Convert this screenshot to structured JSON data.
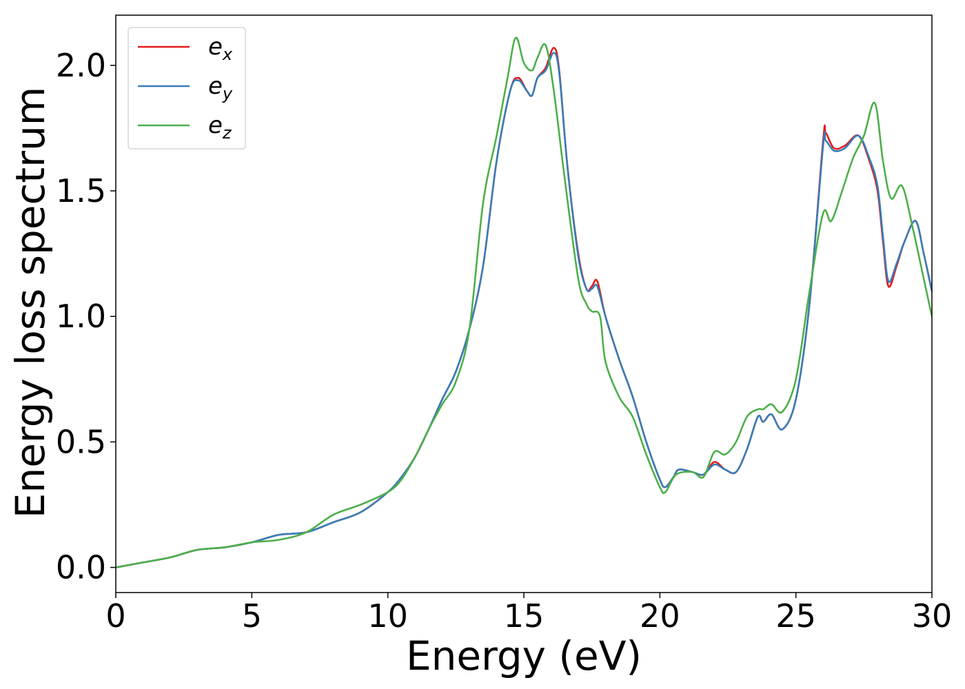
{
  "chart_data": {
    "type": "line",
    "title": "",
    "xlabel": "Energy (eV)",
    "ylabel": "Energy loss spectrum",
    "xlim": [
      0,
      30
    ],
    "ylim": [
      -0.1,
      2.2
    ],
    "xticks": [
      0,
      5,
      10,
      15,
      20,
      25,
      30
    ],
    "xtick_labels": [
      "0",
      "5",
      "10",
      "15",
      "20",
      "25",
      "30"
    ],
    "yticks": [
      0.0,
      0.5,
      1.0,
      1.5,
      2.0
    ],
    "ytick_labels": [
      "0.0",
      "0.5",
      "1.0",
      "1.5",
      "2.0"
    ],
    "grid": false,
    "legend_position": "top-left",
    "series": [
      {
        "name": "e_x",
        "name_base": "e",
        "name_sub": "x",
        "color": "#e41a1c",
        "points": [
          [
            0,
            0
          ],
          [
            1,
            0.02
          ],
          [
            2,
            0.04
          ],
          [
            3,
            0.07
          ],
          [
            4,
            0.08
          ],
          [
            5,
            0.1
          ],
          [
            6,
            0.13
          ],
          [
            7,
            0.14
          ],
          [
            8,
            0.18
          ],
          [
            9,
            0.22
          ],
          [
            10,
            0.3
          ],
          [
            10.5,
            0.36
          ],
          [
            11,
            0.44
          ],
          [
            11.5,
            0.55
          ],
          [
            12,
            0.67
          ],
          [
            12.5,
            0.78
          ],
          [
            13,
            0.95
          ],
          [
            13.5,
            1.2
          ],
          [
            14,
            1.62
          ],
          [
            14.5,
            1.9
          ],
          [
            14.8,
            1.95
          ],
          [
            15.1,
            1.9
          ],
          [
            15.3,
            1.88
          ],
          [
            15.5,
            1.95
          ],
          [
            15.8,
            1.99
          ],
          [
            16.1,
            2.07
          ],
          [
            16.3,
            1.98
          ],
          [
            16.6,
            1.6
          ],
          [
            17.0,
            1.25
          ],
          [
            17.3,
            1.11
          ],
          [
            17.5,
            1.12
          ],
          [
            17.7,
            1.14
          ],
          [
            18,
            1.0
          ],
          [
            18.5,
            0.83
          ],
          [
            19,
            0.68
          ],
          [
            19.5,
            0.5
          ],
          [
            20,
            0.35
          ],
          [
            20.2,
            0.32
          ],
          [
            20.5,
            0.36
          ],
          [
            20.7,
            0.39
          ],
          [
            21.2,
            0.38
          ],
          [
            21.6,
            0.37
          ],
          [
            22,
            0.42
          ],
          [
            22.4,
            0.39
          ],
          [
            22.8,
            0.38
          ],
          [
            23.2,
            0.47
          ],
          [
            23.6,
            0.6
          ],
          [
            23.8,
            0.58
          ],
          [
            24.1,
            0.61
          ],
          [
            24.5,
            0.55
          ],
          [
            25,
            0.67
          ],
          [
            25.5,
            1.05
          ],
          [
            26,
            1.7
          ],
          [
            26.1,
            1.73
          ],
          [
            26.4,
            1.67
          ],
          [
            26.8,
            1.68
          ],
          [
            27.3,
            1.72
          ],
          [
            27.7,
            1.62
          ],
          [
            28,
            1.5
          ],
          [
            28.2,
            1.3
          ],
          [
            28.4,
            1.12
          ],
          [
            28.7,
            1.2
          ],
          [
            29,
            1.3
          ],
          [
            29.4,
            1.38
          ],
          [
            29.7,
            1.25
          ],
          [
            30,
            1.1
          ]
        ]
      },
      {
        "name": "e_y",
        "name_base": "e",
        "name_sub": "y",
        "color": "#377eb8",
        "points": [
          [
            0,
            0
          ],
          [
            1,
            0.02
          ],
          [
            2,
            0.04
          ],
          [
            3,
            0.07
          ],
          [
            4,
            0.08
          ],
          [
            5,
            0.1
          ],
          [
            6,
            0.13
          ],
          [
            7,
            0.14
          ],
          [
            8,
            0.18
          ],
          [
            9,
            0.22
          ],
          [
            10,
            0.3
          ],
          [
            10.5,
            0.36
          ],
          [
            11,
            0.44
          ],
          [
            11.5,
            0.55
          ],
          [
            12,
            0.67
          ],
          [
            12.5,
            0.78
          ],
          [
            13,
            0.95
          ],
          [
            13.5,
            1.2
          ],
          [
            14,
            1.62
          ],
          [
            14.5,
            1.9
          ],
          [
            14.8,
            1.94
          ],
          [
            15.1,
            1.9
          ],
          [
            15.3,
            1.88
          ],
          [
            15.5,
            1.95
          ],
          [
            15.8,
            1.98
          ],
          [
            16.1,
            2.05
          ],
          [
            16.3,
            1.97
          ],
          [
            16.6,
            1.6
          ],
          [
            17.0,
            1.24
          ],
          [
            17.3,
            1.11
          ],
          [
            17.5,
            1.11
          ],
          [
            17.7,
            1.12
          ],
          [
            18,
            1.0
          ],
          [
            18.5,
            0.83
          ],
          [
            19,
            0.68
          ],
          [
            19.5,
            0.5
          ],
          [
            20,
            0.35
          ],
          [
            20.2,
            0.32
          ],
          [
            20.5,
            0.36
          ],
          [
            20.7,
            0.39
          ],
          [
            21.2,
            0.38
          ],
          [
            21.6,
            0.37
          ],
          [
            22,
            0.41
          ],
          [
            22.4,
            0.39
          ],
          [
            22.8,
            0.38
          ],
          [
            23.2,
            0.47
          ],
          [
            23.6,
            0.6
          ],
          [
            23.8,
            0.58
          ],
          [
            24.1,
            0.61
          ],
          [
            24.5,
            0.55
          ],
          [
            25,
            0.67
          ],
          [
            25.5,
            1.05
          ],
          [
            26,
            1.68
          ],
          [
            26.1,
            1.7
          ],
          [
            26.4,
            1.66
          ],
          [
            26.8,
            1.67
          ],
          [
            27.3,
            1.72
          ],
          [
            27.7,
            1.63
          ],
          [
            28,
            1.52
          ],
          [
            28.2,
            1.32
          ],
          [
            28.4,
            1.14
          ],
          [
            28.7,
            1.21
          ],
          [
            29,
            1.3
          ],
          [
            29.4,
            1.38
          ],
          [
            29.7,
            1.25
          ],
          [
            30,
            1.1
          ]
        ]
      },
      {
        "name": "e_z",
        "name_base": "e",
        "name_sub": "z",
        "color": "#4daf4a",
        "points": [
          [
            0,
            0
          ],
          [
            1,
            0.02
          ],
          [
            2,
            0.04
          ],
          [
            3,
            0.07
          ],
          [
            4,
            0.08
          ],
          [
            5,
            0.1
          ],
          [
            6,
            0.11
          ],
          [
            7,
            0.14
          ],
          [
            8,
            0.21
          ],
          [
            9,
            0.25
          ],
          [
            10,
            0.3
          ],
          [
            10.5,
            0.35
          ],
          [
            11,
            0.44
          ],
          [
            11.5,
            0.55
          ],
          [
            12,
            0.65
          ],
          [
            12.5,
            0.74
          ],
          [
            13,
            0.95
          ],
          [
            13.5,
            1.45
          ],
          [
            14,
            1.72
          ],
          [
            14.4,
            1.95
          ],
          [
            14.7,
            2.11
          ],
          [
            15.0,
            2.01
          ],
          [
            15.3,
            1.98
          ],
          [
            15.5,
            2.03
          ],
          [
            15.8,
            2.08
          ],
          [
            16.1,
            1.9
          ],
          [
            16.5,
            1.55
          ],
          [
            17.0,
            1.15
          ],
          [
            17.3,
            1.05
          ],
          [
            17.5,
            1.02
          ],
          [
            17.8,
            1.0
          ],
          [
            18,
            0.82
          ],
          [
            18.5,
            0.68
          ],
          [
            19,
            0.6
          ],
          [
            19.5,
            0.45
          ],
          [
            20,
            0.32
          ],
          [
            20.2,
            0.3
          ],
          [
            20.6,
            0.37
          ],
          [
            21.2,
            0.38
          ],
          [
            21.6,
            0.36
          ],
          [
            22,
            0.46
          ],
          [
            22.4,
            0.45
          ],
          [
            22.8,
            0.5
          ],
          [
            23.2,
            0.6
          ],
          [
            23.6,
            0.63
          ],
          [
            23.8,
            0.63
          ],
          [
            24.1,
            0.65
          ],
          [
            24.5,
            0.62
          ],
          [
            25,
            0.75
          ],
          [
            25.5,
            1.1
          ],
          [
            26,
            1.41
          ],
          [
            26.3,
            1.38
          ],
          [
            26.7,
            1.5
          ],
          [
            27.1,
            1.63
          ],
          [
            27.5,
            1.72
          ],
          [
            27.9,
            1.85
          ],
          [
            28.2,
            1.62
          ],
          [
            28.5,
            1.47
          ],
          [
            28.9,
            1.52
          ],
          [
            29.3,
            1.35
          ],
          [
            29.7,
            1.15
          ],
          [
            30,
            1.0
          ]
        ]
      }
    ]
  }
}
